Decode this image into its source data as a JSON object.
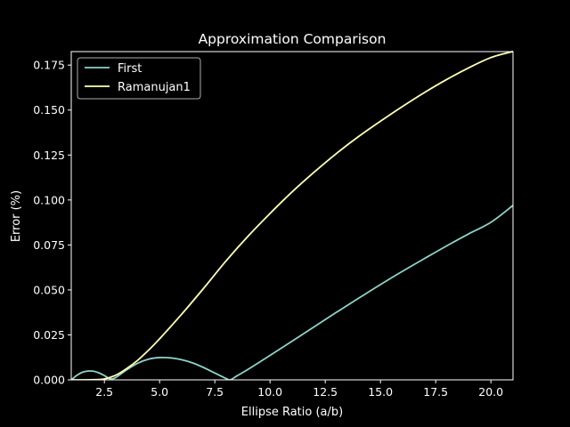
{
  "chart_data": {
    "type": "line",
    "title": "Approximation Comparison",
    "xlabel": "Ellipse Ratio (a/b)",
    "ylabel": "Error (%)",
    "xlim": [
      1.0,
      21.0
    ],
    "ylim": [
      0.0,
      0.1825
    ],
    "xticks": [
      "2.5",
      "5.0",
      "7.5",
      "10.0",
      "12.5",
      "15.0",
      "17.5",
      "20.0"
    ],
    "yticks": [
      "0.000",
      "0.025",
      "0.050",
      "0.075",
      "0.100",
      "0.125",
      "0.150",
      "0.175"
    ],
    "legend_position": "upper-left",
    "grid": false,
    "background": "#000000",
    "series": [
      {
        "name": "First",
        "color": "#8dd3c7",
        "x": [
          1.0,
          1.25,
          1.5,
          1.75,
          2.0,
          2.25,
          2.5,
          2.75,
          3.0,
          3.5,
          4.0,
          4.5,
          5.0,
          5.5,
          6.0,
          6.5,
          7.0,
          7.5,
          8.0,
          8.2,
          8.5,
          9.0,
          10.0,
          11.0,
          12.0,
          13.0,
          14.0,
          15.0,
          16.0,
          17.0,
          18.0,
          19.0,
          20.0,
          21.0
        ],
        "y": [
          0.0,
          0.0025,
          0.0042,
          0.0049,
          0.0048,
          0.0039,
          0.0024,
          0.0006,
          0.0012,
          0.0055,
          0.0092,
          0.0115,
          0.0124,
          0.0122,
          0.0112,
          0.0094,
          0.0068,
          0.0038,
          0.0008,
          0.0,
          0.0022,
          0.0058,
          0.0136,
          0.0215,
          0.0295,
          0.0375,
          0.0453,
          0.053,
          0.0604,
          0.0675,
          0.0745,
          0.0812,
          0.0876,
          0.097
        ]
      },
      {
        "name": "Ramanujan1",
        "color": "#ffffb3",
        "x": [
          1.0,
          1.5,
          2.0,
          2.5,
          3.0,
          3.5,
          4.0,
          4.5,
          5.0,
          6.0,
          7.0,
          8.0,
          9.0,
          10.0,
          11.0,
          12.0,
          13.0,
          14.0,
          15.0,
          16.0,
          17.0,
          18.0,
          19.0,
          20.0,
          21.0
        ],
        "y": [
          0.0,
          0.0,
          0.0001,
          0.0005,
          0.0025,
          0.0062,
          0.0108,
          0.0165,
          0.0228,
          0.0365,
          0.051,
          0.066,
          0.0798,
          0.0925,
          0.1045,
          0.1155,
          0.1258,
          0.1352,
          0.1438,
          0.152,
          0.1598,
          0.167,
          0.1735,
          0.1792,
          0.1826
        ]
      }
    ]
  }
}
